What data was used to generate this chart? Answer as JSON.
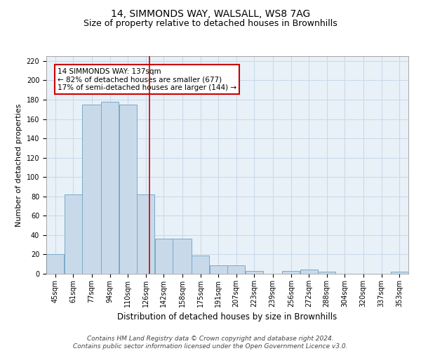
{
  "title": "14, SIMMONDS WAY, WALSALL, WS8 7AG",
  "subtitle": "Size of property relative to detached houses in Brownhills",
  "xlabel": "Distribution of detached houses by size in Brownhills",
  "ylabel": "Number of detached properties",
  "bin_edges": [
    45,
    61,
    77,
    94,
    110,
    126,
    142,
    158,
    175,
    191,
    207,
    223,
    239,
    256,
    272,
    288,
    304,
    320,
    337,
    353,
    369
  ],
  "counts": [
    20,
    82,
    175,
    178,
    175,
    82,
    36,
    36,
    19,
    9,
    9,
    3,
    0,
    3,
    4,
    2,
    0,
    0,
    0,
    2
  ],
  "bar_color": "#c8daea",
  "bar_edge_color": "#7aaac8",
  "vline_x": 137,
  "vline_color": "#cc0000",
  "annotation_text": "14 SIMMONDS WAY: 137sqm\n← 82% of detached houses are smaller (677)\n17% of semi-detached houses are larger (144) →",
  "annotation_box_color": "white",
  "annotation_box_edge_color": "#cc0000",
  "ylim": [
    0,
    225
  ],
  "yticks": [
    0,
    20,
    40,
    60,
    80,
    100,
    120,
    140,
    160,
    180,
    200,
    220
  ],
  "grid_color": "#c8d8e8",
  "background_color": "#e8f0f8",
  "footer": "Contains HM Land Registry data © Crown copyright and database right 2024.\nContains public sector information licensed under the Open Government Licence v3.0.",
  "title_fontsize": 10,
  "subtitle_fontsize": 9,
  "xlabel_fontsize": 8.5,
  "ylabel_fontsize": 8,
  "tick_fontsize": 7,
  "footer_fontsize": 6.5,
  "annotation_fontsize": 7.5
}
